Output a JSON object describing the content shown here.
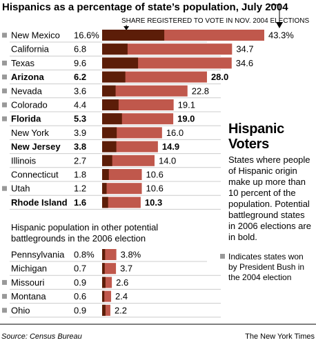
{
  "title": "Hispanics as a percentage of state’s population, July 2004",
  "annotation": "SHARE REGISTERED TO VOTE IN NOV. 2004 ELECTIONS",
  "sidebar": {
    "title_line1": "Hispanic",
    "title_line2": "Voters",
    "description": "States where people of Hispanic origin make up more than 10 percent of the population. Potential battleground states in 2006 elections are in bold."
  },
  "legend": {
    "text": "Indicates states won by President Bush in the 2004 election"
  },
  "section2_title_line1": "Hispanic population in other potential",
  "section2_title_line2": "battlegrounds in the 2006 election",
  "source": "Source: Census Bureau",
  "credit": "The New York Times",
  "colors": {
    "registered": "#5c1d08",
    "population": "#c0584c",
    "bush_marker": "#999999",
    "rule": "#cccccc"
  },
  "chart_data": [
    {
      "type": "bar",
      "title": "Hispanics as a percentage of state’s population, July 2004",
      "xlim": [
        0,
        43.3
      ],
      "series": [
        {
          "name": "Hispanic share of population (%)",
          "values": [
            43.3,
            34.7,
            34.6,
            28.0,
            22.8,
            19.1,
            19.0,
            16.0,
            14.9,
            14.0,
            10.6,
            10.6,
            10.3
          ]
        },
        {
          "name": "SHARE REGISTERED TO VOTE IN NOV. 2004 ELECTIONS",
          "values": [
            16.6,
            6.8,
            9.6,
            6.2,
            3.6,
            4.4,
            5.3,
            3.9,
            3.8,
            2.7,
            1.8,
            1.2,
            1.6
          ]
        }
      ],
      "rows": [
        {
          "state": "New Mexico",
          "registered": "16.6%",
          "population": "43.3%",
          "bold": false,
          "bush": true
        },
        {
          "state": "California",
          "registered": "6.8",
          "population": "34.7",
          "bold": false,
          "bush": false
        },
        {
          "state": "Texas",
          "registered": "9.6",
          "population": "34.6",
          "bold": false,
          "bush": true
        },
        {
          "state": "Arizona",
          "registered": "6.2",
          "population": "28.0",
          "bold": true,
          "bush": true
        },
        {
          "state": "Nevada",
          "registered": "3.6",
          "population": "22.8",
          "bold": false,
          "bush": true
        },
        {
          "state": "Colorado",
          "registered": "4.4",
          "population": "19.1",
          "bold": false,
          "bush": true
        },
        {
          "state": "Florida",
          "registered": "5.3",
          "population": "19.0",
          "bold": true,
          "bush": true
        },
        {
          "state": "New York",
          "registered": "3.9",
          "population": "16.0",
          "bold": false,
          "bush": false
        },
        {
          "state": "New Jersey",
          "registered": "3.8",
          "population": "14.9",
          "bold": true,
          "bush": false
        },
        {
          "state": "Illinois",
          "registered": "2.7",
          "population": "14.0",
          "bold": false,
          "bush": false
        },
        {
          "state": "Connecticut",
          "registered": "1.8",
          "population": "10.6",
          "bold": false,
          "bush": false
        },
        {
          "state": "Utah",
          "registered": "1.2",
          "population": "10.6",
          "bold": false,
          "bush": true
        },
        {
          "state": "Rhode Island",
          "registered": "1.6",
          "population": "10.3",
          "bold": true,
          "bush": false
        }
      ]
    },
    {
      "type": "bar",
      "title": "Hispanic population in other potential battlegrounds in the 2006 election",
      "xlim": [
        0,
        43.3
      ],
      "series": [
        {
          "name": "Hispanic share of population (%)",
          "values": [
            3.8,
            3.7,
            2.6,
            2.4,
            2.2
          ]
        },
        {
          "name": "SHARE REGISTERED TO VOTE IN NOV. 2004 ELECTIONS",
          "values": [
            0.8,
            0.7,
            0.9,
            0.6,
            0.9
          ]
        }
      ],
      "rows": [
        {
          "state": "Pennsylvania",
          "registered": "0.8%",
          "population": "3.8%",
          "bold": false,
          "bush": false
        },
        {
          "state": "Michigan",
          "registered": "0.7",
          "population": "3.7",
          "bold": false,
          "bush": false
        },
        {
          "state": "Missouri",
          "registered": "0.9",
          "population": "2.6",
          "bold": false,
          "bush": true
        },
        {
          "state": "Montana",
          "registered": "0.6",
          "population": "2.4",
          "bold": false,
          "bush": true
        },
        {
          "state": "Ohio",
          "registered": "0.9",
          "population": "2.2",
          "bold": false,
          "bush": true
        }
      ]
    }
  ]
}
